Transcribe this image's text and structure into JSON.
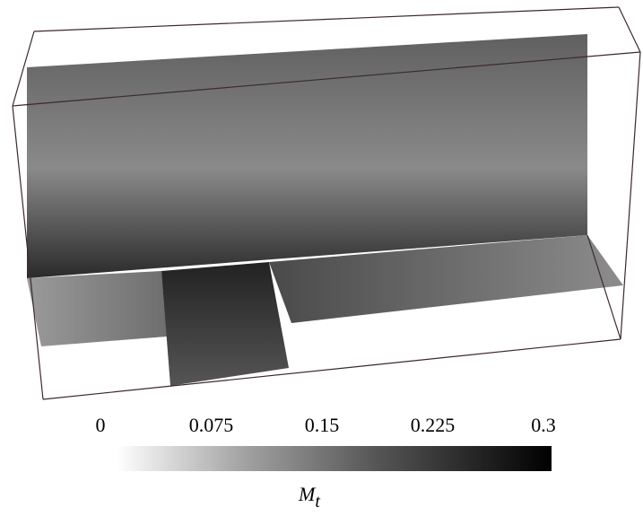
{
  "colorbar": {
    "lim": [
      0,
      0.3
    ],
    "ticks": [
      0,
      0.075,
      0.15,
      0.225,
      0.3
    ],
    "label": {
      "symbol": "M",
      "subscript": "t"
    }
  }
}
